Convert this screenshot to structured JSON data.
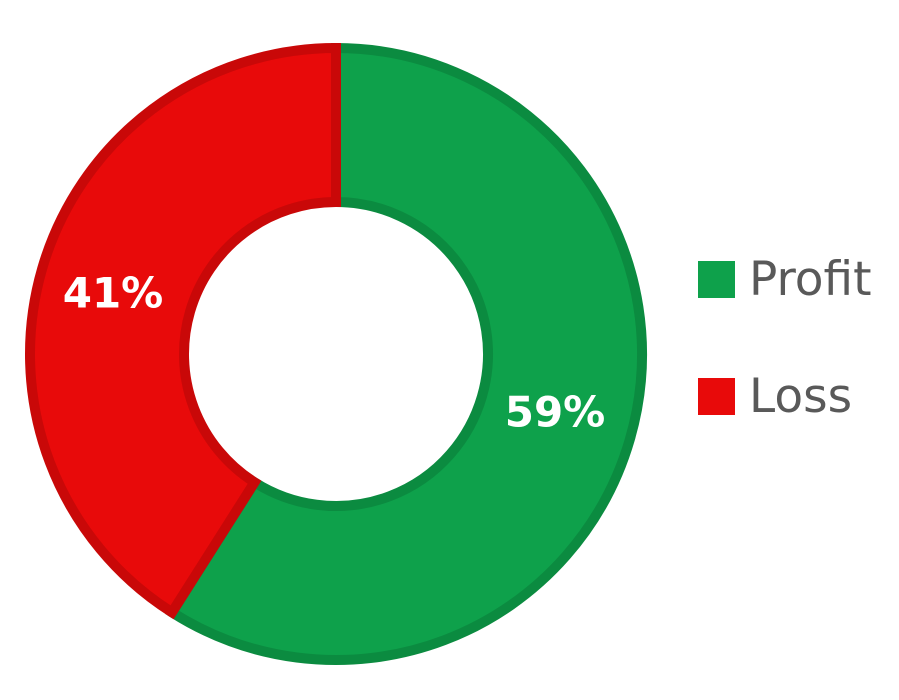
{
  "chart_data": {
    "type": "pie",
    "donut": true,
    "categories": [
      "Profit",
      "Loss"
    ],
    "values": [
      59,
      41
    ],
    "labels": [
      "59%",
      "41%"
    ],
    "colors": [
      "#0ea14b",
      "#e80a0a"
    ],
    "edge_colors": [
      "#0b8b40",
      "#c90808"
    ],
    "legend_placement": "right"
  },
  "legend": {
    "items": [
      {
        "label": "Profit",
        "color": "#0ea14b"
      },
      {
        "label": "Loss",
        "color": "#e80a0a"
      }
    ]
  }
}
